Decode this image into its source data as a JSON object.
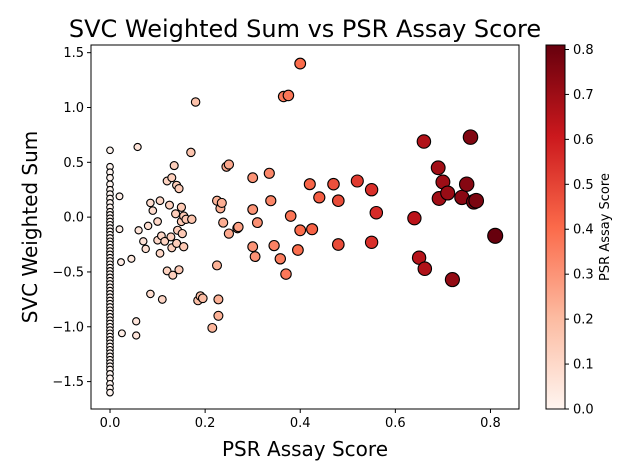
{
  "chart_data": {
    "type": "scatter",
    "title": "SVC Weighted Sum vs PSR Assay Score",
    "xlabel": "PSR Assay Score",
    "ylabel": "SVC Weighted Sum",
    "xlim": [
      -0.04,
      0.86
    ],
    "ylim": [
      -1.75,
      1.57
    ],
    "x_ticks": [
      0.0,
      0.2,
      0.4,
      0.6,
      0.8
    ],
    "x_tick_labels": [
      "0.0",
      "0.2",
      "0.4",
      "0.6",
      "0.8"
    ],
    "y_ticks": [
      -1.5,
      -1.0,
      -0.5,
      0.0,
      0.5,
      1.0,
      1.5
    ],
    "y_tick_labels": [
      "−1.5",
      "−1.0",
      "−0.5",
      "0.0",
      "0.5",
      "1.0",
      "1.5"
    ],
    "grid": false,
    "colormap": "Reds",
    "marker_size": "grows with PSR Assay Score",
    "colorbar": {
      "label": "PSR Assay Score",
      "range": [
        0.0,
        0.81
      ],
      "ticks": [
        0.0,
        0.1,
        0.2,
        0.3,
        0.4,
        0.5,
        0.6,
        0.7,
        0.8
      ],
      "tick_labels": [
        "0.0",
        "0.1",
        "0.2",
        "0.3",
        "0.4",
        "0.5",
        "0.6",
        "0.7",
        "0.8"
      ]
    },
    "points": [
      [
        0,
        0.61
      ],
      [
        0,
        0.46
      ],
      [
        0,
        0.41
      ],
      [
        0,
        0.36
      ],
      [
        0,
        0.3
      ],
      [
        0,
        0.25
      ],
      [
        0,
        0.21
      ],
      [
        0,
        0.17
      ],
      [
        0,
        0.13
      ],
      [
        0,
        0.09
      ],
      [
        0,
        0.05
      ],
      [
        0,
        0.02
      ],
      [
        0,
        -0.01
      ],
      [
        0,
        -0.04
      ],
      [
        0,
        -0.07
      ],
      [
        0,
        -0.1
      ],
      [
        0,
        -0.13
      ],
      [
        0,
        -0.16
      ],
      [
        0,
        -0.19
      ],
      [
        0,
        -0.22
      ],
      [
        0,
        -0.25
      ],
      [
        0,
        -0.28
      ],
      [
        0,
        -0.31
      ],
      [
        0,
        -0.34
      ],
      [
        0,
        -0.37
      ],
      [
        0,
        -0.4
      ],
      [
        0,
        -0.43
      ],
      [
        0,
        -0.46
      ],
      [
        0,
        -0.49
      ],
      [
        0,
        -0.52
      ],
      [
        0,
        -0.55
      ],
      [
        0,
        -0.58
      ],
      [
        0,
        -0.61
      ],
      [
        0,
        -0.64
      ],
      [
        0,
        -0.67
      ],
      [
        0,
        -0.7
      ],
      [
        0,
        -0.73
      ],
      [
        0,
        -0.76
      ],
      [
        0,
        -0.79
      ],
      [
        0,
        -0.82
      ],
      [
        0,
        -0.85
      ],
      [
        0,
        -0.88
      ],
      [
        0,
        -0.91
      ],
      [
        0,
        -0.94
      ],
      [
        0,
        -0.97
      ],
      [
        0,
        -1.0
      ],
      [
        0,
        -1.03
      ],
      [
        0,
        -1.06
      ],
      [
        0,
        -1.09
      ],
      [
        0,
        -1.12
      ],
      [
        0,
        -1.15
      ],
      [
        0,
        -1.18
      ],
      [
        0,
        -1.21
      ],
      [
        0,
        -1.24
      ],
      [
        0,
        -1.27
      ],
      [
        0,
        -1.3
      ],
      [
        0,
        -1.33
      ],
      [
        0,
        -1.36
      ],
      [
        0,
        -1.39
      ],
      [
        0,
        -1.43
      ],
      [
        0,
        -1.47
      ],
      [
        0,
        -1.52
      ],
      [
        0,
        -1.56
      ],
      [
        0,
        -1.6
      ],
      [
        0.02,
        0.19
      ],
      [
        0.02,
        -0.11
      ],
      [
        0.023,
        -0.41
      ],
      [
        0.025,
        -1.06
      ],
      [
        0.045,
        -0.38
      ],
      [
        0.055,
        -0.95
      ],
      [
        0.055,
        -1.08
      ],
      [
        0.058,
        0.64
      ],
      [
        0.06,
        -0.12
      ],
      [
        0.07,
        -0.22
      ],
      [
        0.075,
        -0.29
      ],
      [
        0.08,
        -0.08
      ],
      [
        0.085,
        0.13
      ],
      [
        0.085,
        -0.7
      ],
      [
        0.09,
        0.06
      ],
      [
        0.1,
        -0.04
      ],
      [
        0.1,
        -0.21
      ],
      [
        0.105,
        -0.33
      ],
      [
        0.105,
        0.15
      ],
      [
        0.108,
        -0.17
      ],
      [
        0.11,
        -0.75
      ],
      [
        0.115,
        -0.22
      ],
      [
        0.12,
        0.33
      ],
      [
        0.12,
        -0.49
      ],
      [
        0.125,
        0.11
      ],
      [
        0.128,
        -0.18
      ],
      [
        0.13,
        0.36
      ],
      [
        0.13,
        -0.28
      ],
      [
        0.132,
        -0.53
      ],
      [
        0.135,
        0.47
      ],
      [
        0.138,
        0.03
      ],
      [
        0.14,
        0.29
      ],
      [
        0.14,
        -0.24
      ],
      [
        0.142,
        -0.12
      ],
      [
        0.145,
        0.26
      ],
      [
        0.145,
        -0.48
      ],
      [
        0.15,
        -0.04
      ],
      [
        0.15,
        0.09
      ],
      [
        0.152,
        -0.15
      ],
      [
        0.155,
        0.01
      ],
      [
        0.155,
        -0.27
      ],
      [
        0.16,
        -0.02
      ],
      [
        0.17,
        0.59
      ],
      [
        0.172,
        -0.02
      ],
      [
        0.18,
        1.05
      ],
      [
        0.185,
        -0.76
      ],
      [
        0.19,
        -0.72
      ],
      [
        0.195,
        -0.74
      ],
      [
        0.215,
        -1.01
      ],
      [
        0.225,
        -0.44
      ],
      [
        0.225,
        0.15
      ],
      [
        0.228,
        -0.9
      ],
      [
        0.228,
        -0.75
      ],
      [
        0.232,
        0.08
      ],
      [
        0.235,
        0.13
      ],
      [
        0.238,
        -0.05
      ],
      [
        0.245,
        0.46
      ],
      [
        0.25,
        0.48
      ],
      [
        0.25,
        -0.15
      ],
      [
        0.268,
        -0.1
      ],
      [
        0.27,
        -0.09
      ],
      [
        0.3,
        0.36
      ],
      [
        0.3,
        0.07
      ],
      [
        0.3,
        -0.27
      ],
      [
        0.305,
        -0.36
      ],
      [
        0.31,
        -0.05
      ],
      [
        0.335,
        0.4
      ],
      [
        0.338,
        0.15
      ],
      [
        0.345,
        -0.26
      ],
      [
        0.358,
        -0.38
      ],
      [
        0.365,
        1.1
      ],
      [
        0.37,
        -0.52
      ],
      [
        0.375,
        1.11
      ],
      [
        0.38,
        0.01
      ],
      [
        0.395,
        -0.3
      ],
      [
        0.4,
        1.4
      ],
      [
        0.4,
        -0.12
      ],
      [
        0.42,
        0.3
      ],
      [
        0.425,
        -0.11
      ],
      [
        0.44,
        0.18
      ],
      [
        0.47,
        0.3
      ],
      [
        0.48,
        0.15
      ],
      [
        0.48,
        -0.25
      ],
      [
        0.52,
        0.33
      ],
      [
        0.55,
        0.25
      ],
      [
        0.55,
        -0.23
      ],
      [
        0.56,
        0.04
      ],
      [
        0.64,
        -0.01
      ],
      [
        0.65,
        -0.37
      ],
      [
        0.66,
        0.69
      ],
      [
        0.662,
        -0.47
      ],
      [
        0.69,
        0.45
      ],
      [
        0.692,
        0.17
      ],
      [
        0.7,
        0.32
      ],
      [
        0.71,
        0.22
      ],
      [
        0.72,
        -0.57
      ],
      [
        0.74,
        0.18
      ],
      [
        0.75,
        0.3
      ],
      [
        0.758,
        0.73
      ],
      [
        0.765,
        0.14
      ],
      [
        0.77,
        0.15
      ],
      [
        0.81,
        -0.17
      ]
    ]
  }
}
